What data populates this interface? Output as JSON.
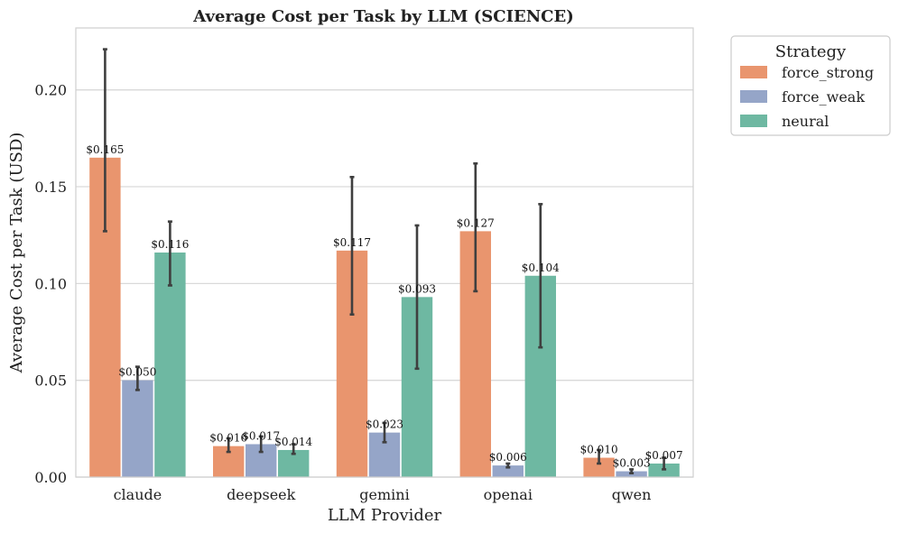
{
  "chart_data": {
    "type": "bar",
    "title": "Average Cost per Task by LLM (SCIENCE)",
    "xlabel": "LLM Provider",
    "ylabel": "Average Cost per Task (USD)",
    "ylim": [
      0,
      0.232
    ],
    "yticks": [
      0.0,
      0.05,
      0.1,
      0.15,
      0.2
    ],
    "ytick_labels": [
      "0.00",
      "0.05",
      "0.10",
      "0.15",
      "0.20"
    ],
    "grid": true,
    "categories": [
      "claude",
      "deepseek",
      "gemini",
      "openai",
      "qwen"
    ],
    "legend": {
      "title": "Strategy",
      "placement": "outside-top-right"
    },
    "series": [
      {
        "name": "force_strong",
        "color": "#e9956e",
        "values": [
          0.165,
          0.016,
          0.117,
          0.127,
          0.01
        ],
        "labels": [
          "$0.165",
          "$0.016",
          "$0.117",
          "$0.127",
          "$0.010"
        ],
        "err_low": [
          0.127,
          0.013,
          0.084,
          0.096,
          0.007
        ],
        "err_high": [
          0.221,
          0.02,
          0.155,
          0.162,
          0.014
        ]
      },
      {
        "name": "force_weak",
        "color": "#95a5c8",
        "values": [
          0.05,
          0.017,
          0.023,
          0.006,
          0.003
        ],
        "labels": [
          "$0.050",
          "$0.017",
          "$0.023",
          "$0.006",
          "$0.003"
        ],
        "err_low": [
          0.045,
          0.013,
          0.018,
          0.005,
          0.002
        ],
        "err_high": [
          0.057,
          0.021,
          0.028,
          0.007,
          0.004
        ]
      },
      {
        "name": "neural",
        "color": "#6eb8a2",
        "values": [
          0.116,
          0.014,
          0.093,
          0.104,
          0.007
        ],
        "labels": [
          "$0.116",
          "$0.014",
          "$0.093",
          "$0.104",
          "$0.007"
        ],
        "err_low": [
          0.099,
          0.012,
          0.056,
          0.067,
          0.004
        ],
        "err_high": [
          0.132,
          0.017,
          0.13,
          0.141,
          0.01
        ]
      }
    ]
  }
}
